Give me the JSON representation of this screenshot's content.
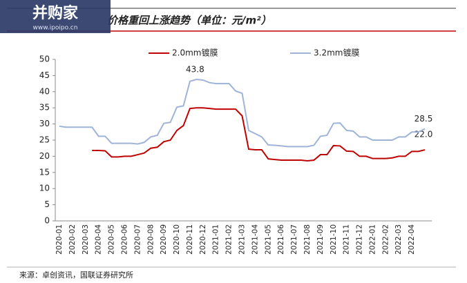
{
  "watermark": {
    "brand": "并购家",
    "site": "www.ipoipo.cn"
  },
  "chart_data": {
    "type": "line",
    "title": "价格重回上涨趋势（单位：元/m²）",
    "source": "来源：卓创资讯，国联证券研究所",
    "categories": [
      "2020-01",
      null,
      "2020-02",
      null,
      "2020-03",
      null,
      "2020-04",
      null,
      "2020-05",
      null,
      "2020-06",
      null,
      "2020-07",
      null,
      "2020-08",
      null,
      "2020-09",
      null,
      "2020-10",
      null,
      "2020-11",
      null,
      "2020-12",
      null,
      "2021-01",
      null,
      "2021-02",
      null,
      "2021-03",
      null,
      "2021-04",
      null,
      "2021-05",
      null,
      "2021-06",
      null,
      "2021-07",
      null,
      "2021-08",
      null,
      "2021-09",
      null,
      "2021-10",
      null,
      "2021-11",
      null,
      "2021-12",
      null,
      "2022-01",
      null,
      "2022-02",
      null,
      "2022-03",
      null,
      "2022-04",
      null,
      null
    ],
    "series": [
      {
        "name": "2.0mm镀膜",
        "color": "#c00000",
        "values": [
          null,
          null,
          null,
          null,
          null,
          21.8,
          21.8,
          21.7,
          19.8,
          19.8,
          20.0,
          20.0,
          20.5,
          21.0,
          22.5,
          22.8,
          24.5,
          25.0,
          28.0,
          29.5,
          34.8,
          35.0,
          35.0,
          34.8,
          34.6,
          34.6,
          34.6,
          34.6,
          32.5,
          22.2,
          22.0,
          22.0,
          19.2,
          19.0,
          18.8,
          18.8,
          18.8,
          18.8,
          18.6,
          18.8,
          20.5,
          20.5,
          23.3,
          23.2,
          21.6,
          21.5,
          20.0,
          20.0,
          19.3,
          19.3,
          19.3,
          19.5,
          20.0,
          20.0,
          21.5,
          21.5,
          22.0
        ],
        "value_labels": [
          null,
          null,
          null,
          null,
          null,
          null,
          null,
          null,
          null,
          null,
          null,
          null,
          null,
          null,
          null,
          null,
          null,
          null,
          null,
          null,
          null,
          null,
          null,
          null,
          null,
          null,
          null,
          null,
          null,
          null,
          null,
          null,
          null,
          null,
          null,
          null,
          null,
          null,
          null,
          null,
          null,
          null,
          null,
          null,
          null,
          null,
          null,
          null,
          null,
          null,
          null,
          null,
          null,
          null,
          null,
          null,
          "22.0"
        ]
      },
      {
        "name": "3.2mm镀膜",
        "color": "#9fb3d8",
        "values": [
          29.3,
          29.0,
          29.0,
          29.0,
          29.0,
          29.0,
          26.2,
          26.2,
          24.0,
          24.0,
          24.0,
          24.0,
          23.8,
          24.3,
          26.0,
          26.5,
          30.2,
          30.5,
          35.2,
          35.6,
          43.2,
          43.8,
          43.6,
          42.8,
          42.5,
          42.5,
          42.5,
          40.2,
          39.5,
          28.0,
          27.0,
          26.0,
          23.5,
          23.4,
          23.2,
          23.0,
          23.0,
          23.0,
          23.0,
          23.4,
          26.2,
          26.5,
          30.2,
          30.3,
          28.0,
          27.8,
          26.0,
          26.0,
          25.0,
          25.0,
          25.0,
          25.0,
          26.0,
          26.0,
          27.5,
          27.5,
          28.5
        ],
        "value_labels": [
          null,
          null,
          null,
          null,
          null,
          null,
          null,
          null,
          null,
          null,
          null,
          null,
          null,
          null,
          null,
          null,
          null,
          null,
          null,
          null,
          null,
          "43.8",
          null,
          null,
          null,
          null,
          null,
          null,
          null,
          null,
          null,
          null,
          null,
          null,
          null,
          null,
          null,
          null,
          null,
          null,
          null,
          null,
          null,
          null,
          null,
          null,
          null,
          null,
          null,
          null,
          null,
          null,
          null,
          null,
          null,
          null,
          "28.5"
        ]
      }
    ],
    "ylim": [
      0,
      50
    ],
    "yticks": [
      0,
      5,
      10,
      15,
      20,
      25,
      30,
      35,
      40,
      45,
      50
    ],
    "legend": "top"
  }
}
